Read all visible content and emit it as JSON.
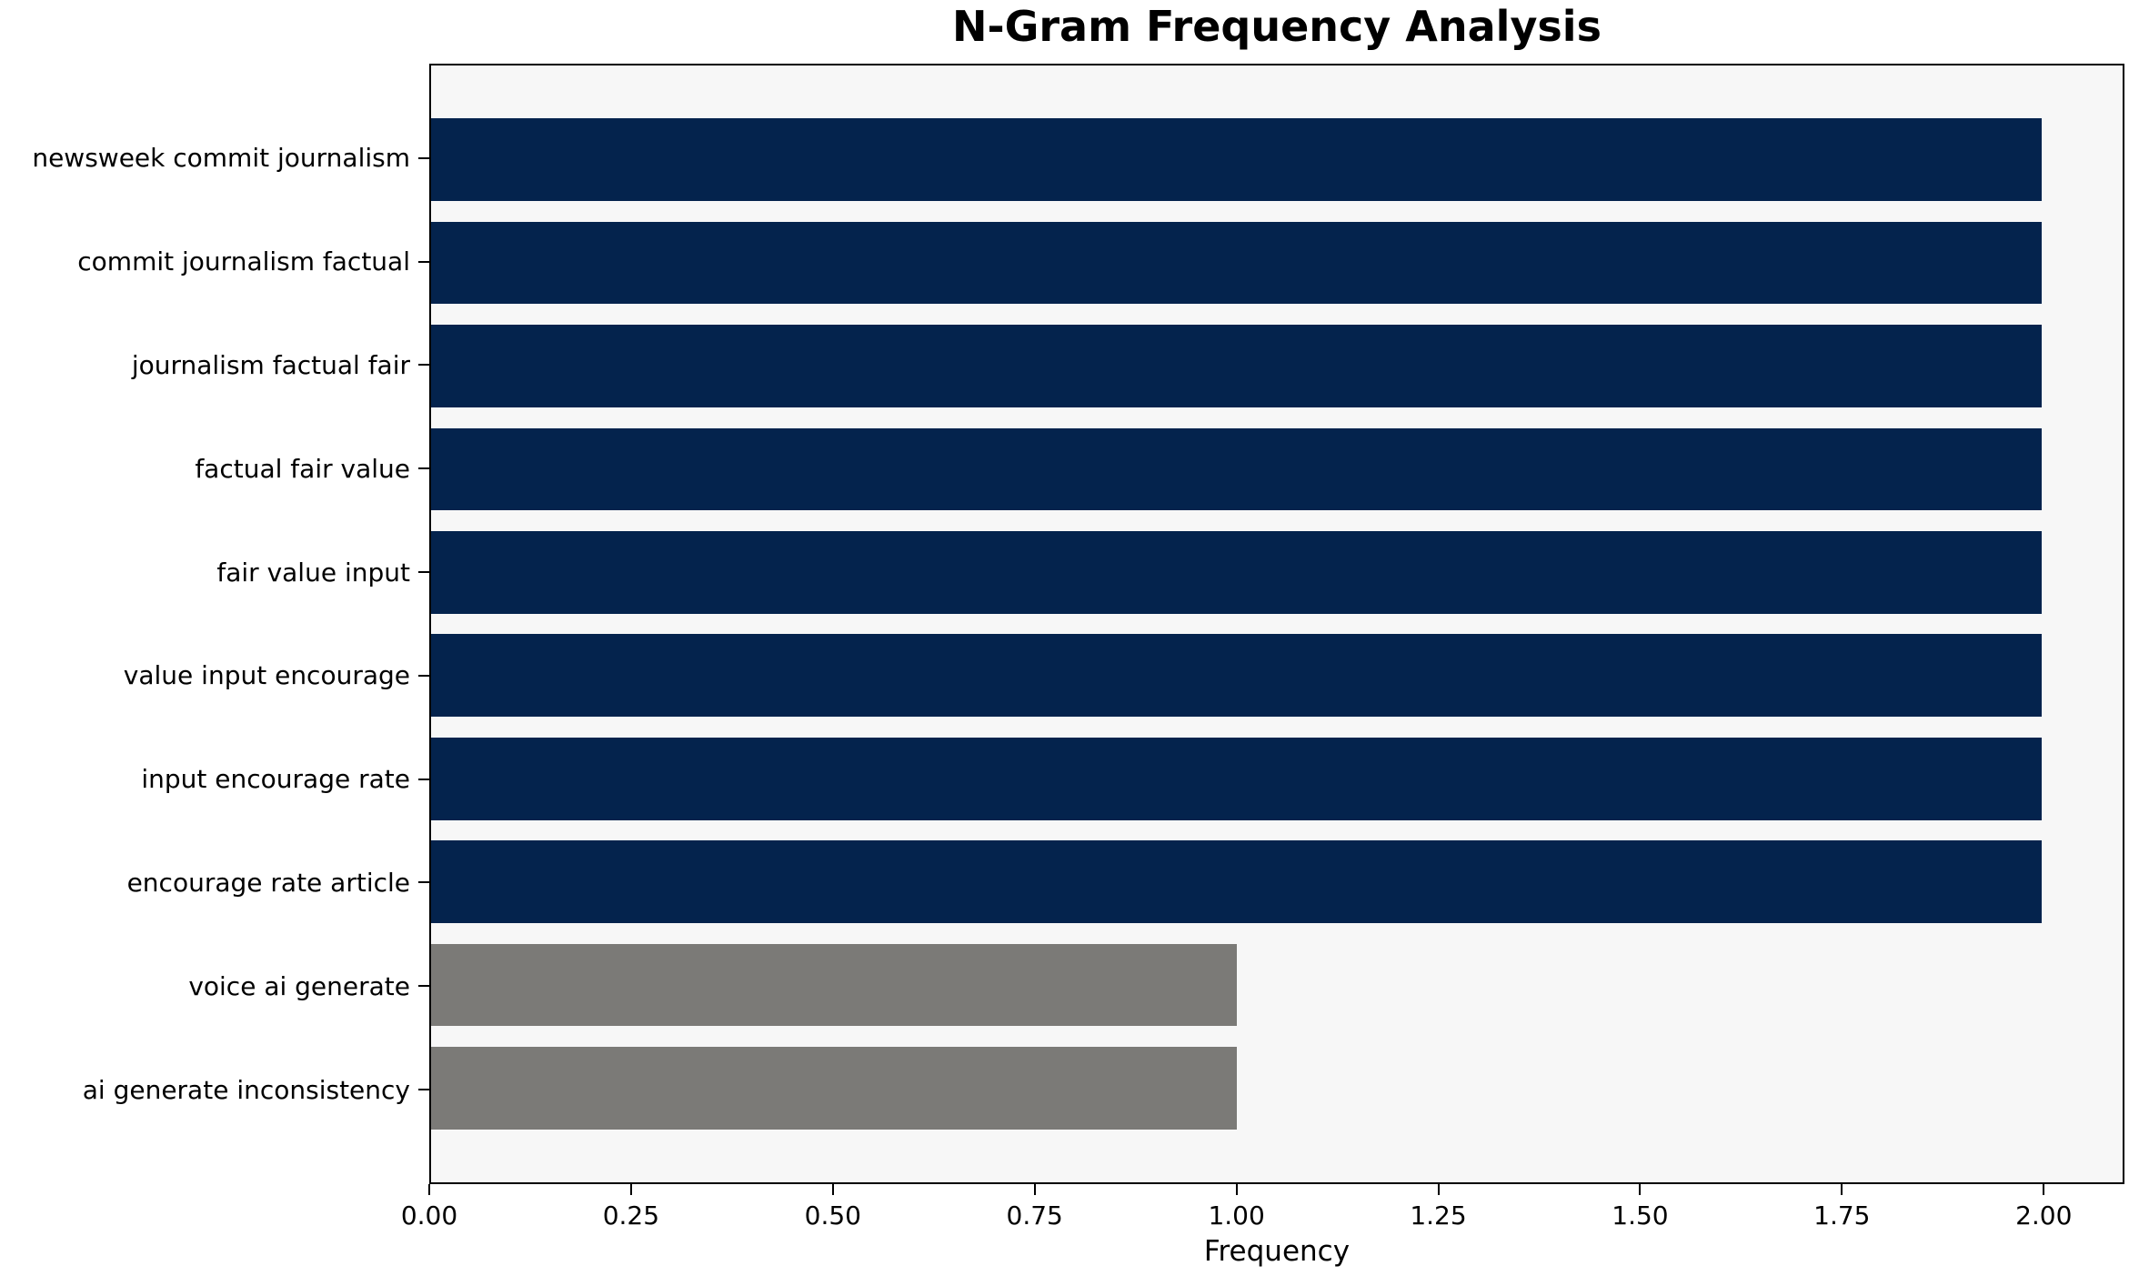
{
  "chart_data": {
    "type": "bar",
    "orientation": "horizontal",
    "title": "N-Gram Frequency Analysis",
    "xlabel": "Frequency",
    "ylabel": "",
    "categories": [
      "newsweek commit journalism",
      "commit journalism factual",
      "journalism factual fair",
      "factual fair value",
      "fair value input",
      "value input encourage",
      "input encourage rate",
      "encourage rate article",
      "voice ai generate",
      "ai generate inconsistency"
    ],
    "values": [
      2,
      2,
      2,
      2,
      2,
      2,
      2,
      2,
      1,
      1
    ],
    "bar_colors": [
      "#04234d",
      "#04234d",
      "#04234d",
      "#04234d",
      "#04234d",
      "#04234d",
      "#04234d",
      "#04234d",
      "#7b7a77",
      "#7b7a77"
    ],
    "xlim": [
      0,
      2.1
    ],
    "xticks": [
      0.0,
      0.25,
      0.5,
      0.75,
      1.0,
      1.25,
      1.5,
      1.75,
      2.0
    ],
    "xtick_labels": [
      "0.00",
      "0.25",
      "0.50",
      "0.75",
      "1.00",
      "1.25",
      "1.50",
      "1.75",
      "2.00"
    ],
    "grid": false,
    "legend": null,
    "bar_height_frac": 0.8,
    "plot_background": "#f7f7f7",
    "figure_background": "#ffffff"
  }
}
